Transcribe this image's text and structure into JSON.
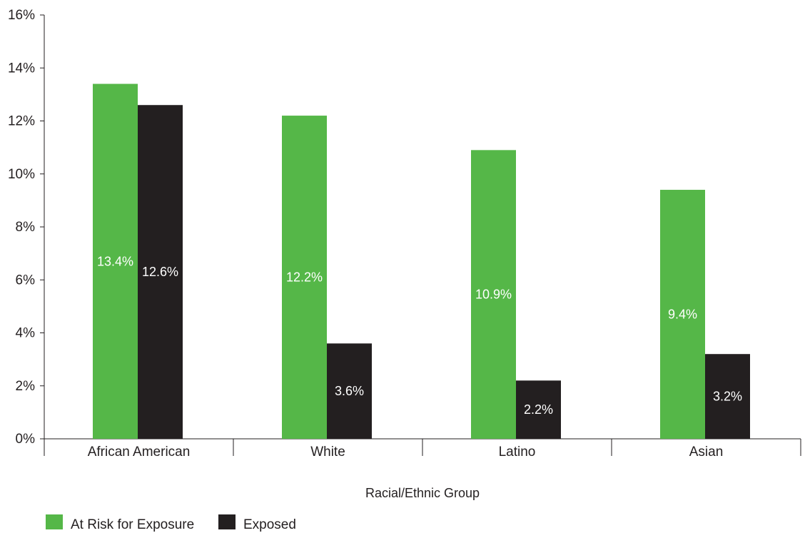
{
  "chart_data": {
    "type": "bar",
    "categories": [
      "African American",
      "White",
      "Latino",
      "Asian"
    ],
    "series": [
      {
        "name": "At Risk for Exposure",
        "color": "#55b748",
        "values": [
          13.4,
          12.2,
          10.9,
          9.4
        ],
        "labels": [
          "13.4%",
          "12.2%",
          "10.9%",
          "9.4%"
        ]
      },
      {
        "name": "Exposed",
        "color": "#231f20",
        "values": [
          12.6,
          3.6,
          2.2,
          3.2
        ],
        "labels": [
          "12.6%",
          "3.6%",
          "2.2%",
          "3.2%"
        ]
      }
    ],
    "title": "",
    "xlabel": "Racial/Ethnic Group",
    "ylabel": "",
    "ylim": [
      0,
      16
    ],
    "yticks": [
      0,
      2,
      4,
      6,
      8,
      10,
      12,
      14,
      16
    ],
    "ytick_labels": [
      "0%",
      "2%",
      "4%",
      "6%",
      "8%",
      "10%",
      "12%",
      "14%",
      "16%"
    ],
    "grid": false,
    "legend_position": "bottom-left"
  }
}
